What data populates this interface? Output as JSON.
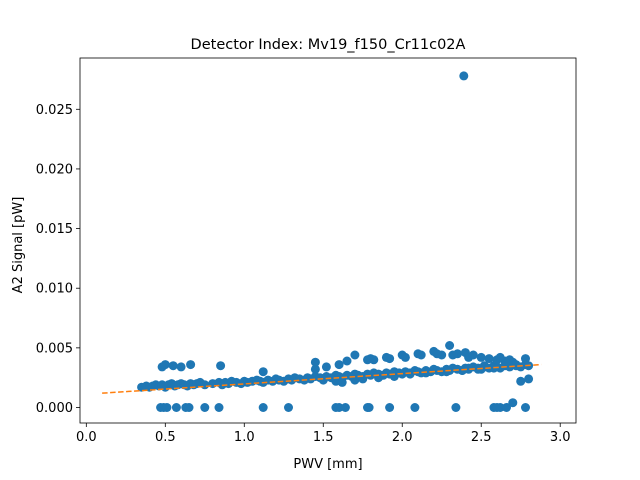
{
  "chart_data": {
    "type": "scatter",
    "title": "Detector Index: Mv19_f150_Cr11c02A",
    "xlabel": "PWV [mm]",
    "ylabel": "A2 Signal [pW]",
    "xlim": [
      -0.04,
      3.1
    ],
    "ylim": [
      -0.0013,
      0.0293
    ],
    "x_ticks": [
      0.0,
      0.5,
      1.0,
      1.5,
      2.0,
      2.5,
      3.0
    ],
    "x_tick_labels": [
      "0.0",
      "0.5",
      "1.0",
      "1.5",
      "2.0",
      "2.5",
      "3.0"
    ],
    "y_ticks": [
      0.0,
      0.005,
      0.01,
      0.015,
      0.02,
      0.025
    ],
    "y_tick_labels": [
      "0.000",
      "0.005",
      "0.010",
      "0.015",
      "0.020",
      "0.025"
    ],
    "grid": false,
    "colors": {
      "points": "#1f77b4",
      "fit": "#ff7f0e"
    },
    "fit_line": {
      "style": "dashed",
      "x": [
        0.1,
        2.88
      ],
      "y": [
        0.0012,
        0.0036
      ]
    },
    "series": [
      {
        "kind": "points",
        "x": [
          2.39,
          0.35,
          0.38,
          0.4,
          0.42,
          0.44,
          0.46,
          0.48,
          0.5,
          0.52,
          0.54,
          0.56,
          0.58,
          0.6,
          0.62,
          0.64,
          0.66,
          0.68,
          0.7,
          0.72,
          0.75,
          0.8,
          0.84,
          0.86,
          0.88,
          0.9,
          0.92,
          0.95,
          0.98,
          1.0,
          1.02,
          1.05,
          1.08,
          1.1,
          1.12,
          1.15,
          1.18,
          1.2,
          1.22,
          1.25,
          1.28,
          1.3,
          1.32,
          1.35,
          1.38,
          1.4,
          1.42,
          1.45,
          1.48,
          1.5,
          1.52,
          1.55,
          1.58,
          1.6,
          1.62,
          1.65,
          1.68,
          1.7,
          1.72,
          1.75,
          1.78,
          1.8,
          1.82,
          1.85,
          1.88,
          1.9,
          1.92,
          1.95,
          1.98,
          2.0,
          2.02,
          2.05,
          2.08,
          2.1,
          2.12,
          2.15,
          2.18,
          2.2,
          2.22,
          2.25,
          2.28,
          2.3,
          2.32,
          2.35,
          2.38,
          2.4,
          2.42,
          2.45,
          2.48,
          2.5,
          2.52,
          2.55,
          2.58,
          2.6,
          2.62,
          2.65,
          2.68,
          2.7,
          2.72,
          2.75,
          2.78,
          2.8,
          0.48,
          0.5,
          0.55,
          0.6,
          0.66,
          0.85,
          1.12,
          1.45,
          1.52,
          1.6,
          1.7,
          1.78,
          1.8,
          1.9,
          2.0,
          2.1,
          2.2,
          2.25,
          2.3,
          2.35,
          2.4,
          2.42,
          2.45,
          2.5,
          2.55,
          2.6,
          2.65,
          2.7,
          2.75,
          2.8,
          1.5,
          1.58,
          1.62,
          1.7,
          1.75,
          1.85,
          1.95,
          2.05,
          2.15,
          2.28,
          2.38,
          2.48,
          2.58,
          2.68,
          2.78,
          2.62,
          2.66,
          2.72,
          1.45,
          1.65,
          1.82,
          1.92,
          2.02,
          2.12,
          2.22,
          2.32,
          2.42,
          2.52,
          0.47,
          0.49,
          0.51,
          0.57,
          0.63,
          0.65,
          0.75,
          0.84,
          1.12,
          1.28,
          1.58,
          1.6,
          1.64,
          1.78,
          1.79,
          1.92,
          2.08,
          2.34,
          2.58,
          2.62,
          2.66,
          2.7,
          2.78,
          2.6
        ],
        "y": [
          0.0278,
          0.0017,
          0.0018,
          0.0017,
          0.0018,
          0.0019,
          0.0018,
          0.0019,
          0.0017,
          0.0019,
          0.002,
          0.0018,
          0.0019,
          0.002,
          0.0019,
          0.0018,
          0.002,
          0.0019,
          0.002,
          0.0021,
          0.0019,
          0.002,
          0.0021,
          0.0019,
          0.0021,
          0.002,
          0.0022,
          0.0021,
          0.002,
          0.0022,
          0.0021,
          0.0022,
          0.0023,
          0.0022,
          0.0021,
          0.0023,
          0.0022,
          0.0024,
          0.0023,
          0.0022,
          0.0024,
          0.0023,
          0.0025,
          0.0024,
          0.0023,
          0.0025,
          0.0024,
          0.0026,
          0.0025,
          0.0024,
          0.0026,
          0.0025,
          0.0027,
          0.0026,
          0.0025,
          0.0027,
          0.0026,
          0.0028,
          0.0027,
          0.0026,
          0.0028,
          0.0027,
          0.0029,
          0.0028,
          0.0027,
          0.0029,
          0.0028,
          0.003,
          0.0029,
          0.0028,
          0.003,
          0.0029,
          0.0031,
          0.003,
          0.0029,
          0.0031,
          0.003,
          0.0032,
          0.0031,
          0.003,
          0.0032,
          0.0031,
          0.0033,
          0.0032,
          0.0031,
          0.0033,
          0.0032,
          0.0034,
          0.0033,
          0.0032,
          0.0034,
          0.0033,
          0.0035,
          0.0034,
          0.0033,
          0.0035,
          0.0034,
          0.0036,
          0.0035,
          0.0034,
          0.0036,
          0.0035,
          0.0034,
          0.0036,
          0.0035,
          0.0034,
          0.0036,
          0.0035,
          0.003,
          0.0032,
          0.0034,
          0.0036,
          0.0044,
          0.004,
          0.0041,
          0.0042,
          0.0044,
          0.0045,
          0.0047,
          0.0044,
          0.0052,
          0.0045,
          0.0046,
          0.0042,
          0.0044,
          0.0042,
          0.0041,
          0.004,
          0.0039,
          0.0038,
          0.0022,
          0.0024,
          0.0023,
          0.0022,
          0.0021,
          0.0023,
          0.0024,
          0.0025,
          0.0026,
          0.0028,
          0.0029,
          0.003,
          0.0031,
          0.0032,
          0.0033,
          0.004,
          0.0041,
          0.0042,
          0.0037,
          0.0036,
          0.0038,
          0.0039,
          0.004,
          0.0041,
          0.0042,
          0.0044,
          0.0045,
          0.0044,
          0.0033,
          0.0035,
          0.0,
          0.0,
          0.0,
          0.0,
          0.0,
          0.0,
          0.0,
          0.0,
          0.0,
          0.0,
          0.0,
          0.0,
          0.0,
          0.0,
          0.0,
          0.0,
          0.0,
          0.0,
          0.0,
          0.0,
          0.0,
          0.0004,
          0.0,
          0.0
        ]
      }
    ]
  }
}
